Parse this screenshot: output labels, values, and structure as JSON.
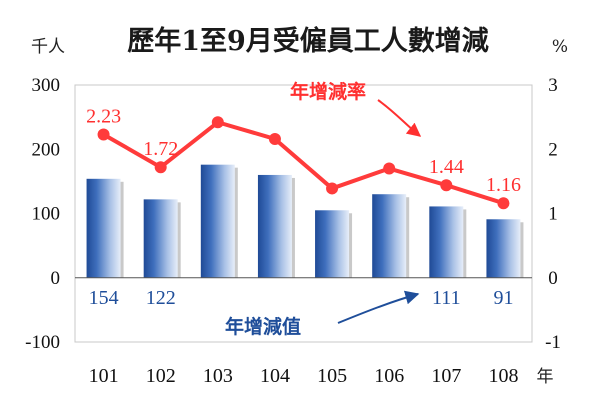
{
  "chart_data": {
    "type": "bar",
    "title": "歷年1至9月受僱員工人數增減",
    "left_unit": "千人",
    "right_unit": "%",
    "x_unit": "年",
    "categories": [
      "101",
      "102",
      "103",
      "104",
      "105",
      "106",
      "107",
      "108"
    ],
    "y_left": {
      "min": -100,
      "max": 300,
      "ticks": [
        "-100",
        "0",
        "100",
        "200",
        "300"
      ]
    },
    "y_right": {
      "min": -1,
      "max": 3,
      "ticks": [
        "-1",
        "0",
        "1",
        "2",
        "3"
      ]
    },
    "series": [
      {
        "name": "年增減值",
        "type": "bar",
        "axis": "left",
        "values": [
          154,
          122,
          176,
          160,
          105,
          130,
          111,
          91
        ],
        "labels": [
          "154",
          "122",
          "",
          "",
          "",
          "",
          "111",
          "91"
        ]
      },
      {
        "name": "年增減率",
        "type": "line",
        "axis": "right",
        "values": [
          2.23,
          1.72,
          2.42,
          2.16,
          1.39,
          1.7,
          1.44,
          1.16
        ],
        "labels": [
          "2.23",
          "1.72",
          "",
          "",
          "",
          "",
          "1.44",
          "1.16"
        ]
      }
    ],
    "colors": {
      "bar": "#2c5aa8",
      "line": "#ff3b3b",
      "bar_label": "#1f4e9a",
      "rate_label": "#ff3030"
    },
    "grid": false
  }
}
